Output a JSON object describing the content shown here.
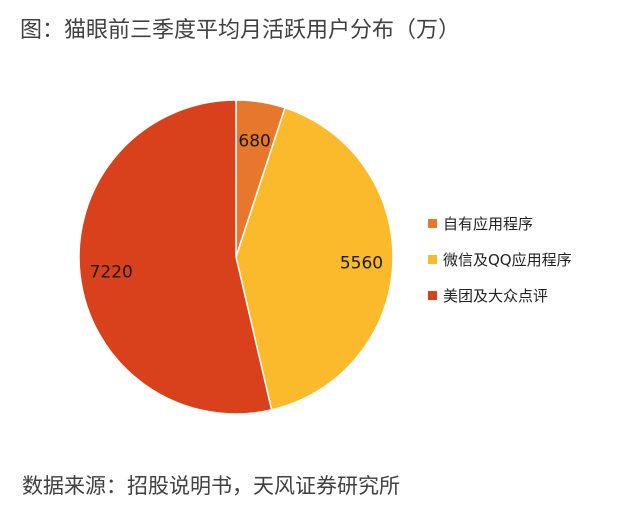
{
  "title": "图：猫眼前三季度平均月活跃用户分布（万）",
  "source": "数据来源：招股说明书，天风证券研究所",
  "chart_data": {
    "type": "pie",
    "title": "图：猫眼前三季度平均月活跃用户分布（万）",
    "legend_position": "right",
    "slices": [
      {
        "label": "自有应用程序",
        "value": 680,
        "color": "#E8772E"
      },
      {
        "label": "微信及QQ应用程序",
        "value": 5560,
        "color": "#FBBA2B"
      },
      {
        "label": "美团及大众点评",
        "value": 7220,
        "color": "#D9401C"
      }
    ]
  }
}
